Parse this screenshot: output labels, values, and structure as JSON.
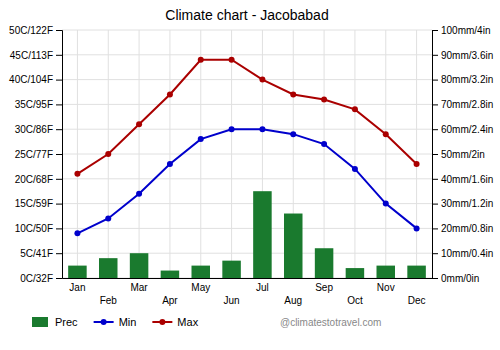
{
  "chart_data": {
    "type": "bar",
    "title": "Climate chart - Jacobabad",
    "categories": [
      "Jan",
      "Feb",
      "Mar",
      "Apr",
      "May",
      "Jun",
      "Jul",
      "Aug",
      "Sep",
      "Oct",
      "Nov",
      "Dec"
    ],
    "series": [
      {
        "name": "Prec",
        "type": "bar",
        "axis": "y2",
        "color": "#1a7a2e",
        "values": [
          5,
          8,
          10,
          3,
          5,
          7,
          35,
          26,
          12,
          4,
          5,
          5
        ]
      },
      {
        "name": "Min",
        "type": "line",
        "color": "#0000cc",
        "marker": "circle",
        "values": [
          9,
          12,
          17,
          23,
          28,
          30,
          30,
          29,
          27,
          22,
          15,
          10
        ]
      },
      {
        "name": "Max",
        "type": "line",
        "color": "#aa0000",
        "marker": "circle",
        "values": [
          21,
          25,
          31,
          37,
          44,
          44,
          40,
          37,
          36,
          34,
          29,
          23
        ]
      }
    ],
    "ylim": [
      0,
      50
    ],
    "yticks": [
      {
        "value": 0,
        "label": "0C/32F"
      },
      {
        "value": 5,
        "label": "5C/41F"
      },
      {
        "value": 10,
        "label": "10C/50F"
      },
      {
        "value": 15,
        "label": "15C/59F"
      },
      {
        "value": 20,
        "label": "20C/68F"
      },
      {
        "value": 25,
        "label": "25C/77F"
      },
      {
        "value": 30,
        "label": "30C/86F"
      },
      {
        "value": 35,
        "label": "35C/95F"
      },
      {
        "value": 40,
        "label": "40C/104F"
      },
      {
        "value": 45,
        "label": "45C/113F"
      },
      {
        "value": 50,
        "label": "50C/122F"
      }
    ],
    "y2lim": [
      0,
      100
    ],
    "y2ticks": [
      {
        "value": 0,
        "label": "0mm/0in"
      },
      {
        "value": 10,
        "label": "10mm/0.4in"
      },
      {
        "value": 20,
        "label": "20mm/0.8in"
      },
      {
        "value": 30,
        "label": "30mm/1.2in"
      },
      {
        "value": 40,
        "label": "40mm/1.6in"
      },
      {
        "value": 50,
        "label": "50mm/2in"
      },
      {
        "value": 60,
        "label": "60mm/2.4in"
      },
      {
        "value": 70,
        "label": "70mm/2.8in"
      },
      {
        "value": 80,
        "label": "80mm/3.2in"
      },
      {
        "value": 90,
        "label": "90mm/3.6in"
      },
      {
        "value": 100,
        "label": "100mm/4in"
      }
    ],
    "grid": true,
    "legend": "bottom",
    "annotations": [
      "@climatestotravel.com"
    ]
  }
}
